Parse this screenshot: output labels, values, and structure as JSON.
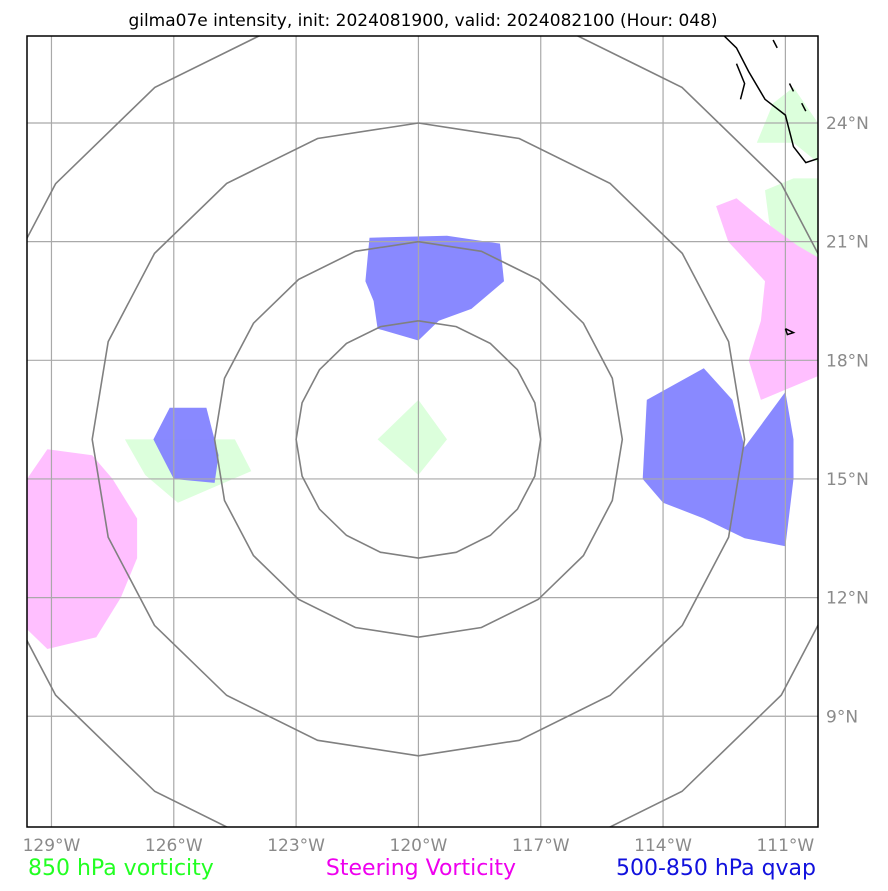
{
  "title": "gilma07e intensity, init: 2024081900, valid: 2024082100 (Hour: 048)",
  "map": {
    "lon_range": [
      -129.6,
      -110.2
    ],
    "lat_range": [
      6.2,
      26.2
    ],
    "projection": "plate-carree",
    "lon_ticks": [
      {
        "value": -129,
        "label": "129°W"
      },
      {
        "value": -126,
        "label": "126°W"
      },
      {
        "value": -123,
        "label": "123°W"
      },
      {
        "value": -120,
        "label": "120°W"
      },
      {
        "value": -117,
        "label": "117°W"
      },
      {
        "value": -114,
        "label": "114°W"
      },
      {
        "value": -111,
        "label": "111°W"
      }
    ],
    "lat_ticks": [
      {
        "value": 9,
        "label": "9°N"
      },
      {
        "value": 12,
        "label": "12°N"
      },
      {
        "value": 15,
        "label": "15°N"
      },
      {
        "value": 18,
        "label": "18°N"
      },
      {
        "value": 21,
        "label": "21°N"
      },
      {
        "value": 24,
        "label": "24°N"
      }
    ],
    "storm_center": {
      "lon": -120,
      "lat": 16
    },
    "range_ring_radii_deg": [
      3,
      5,
      8,
      11
    ],
    "colors": {
      "grid": "#a9a9a9",
      "rings": "#808080",
      "coastline": "#000000",
      "vort850": "#dcffdc",
      "steering": "#ffbfff",
      "qvap": "#7f7fff"
    }
  },
  "layers": {
    "vort850": [
      [
        [
          -125.9,
          16.0
        ],
        [
          -124.5,
          16.0
        ],
        [
          -124.1,
          15.2
        ],
        [
          -125.0,
          14.8
        ],
        [
          -125.9,
          14.4
        ],
        [
          -126.7,
          15.1
        ],
        [
          -127.2,
          16.0
        ]
      ],
      [
        [
          -120.0,
          17.0
        ],
        [
          -119.3,
          16.0
        ],
        [
          -120.0,
          15.1
        ],
        [
          -121.0,
          16.0
        ]
      ],
      [
        [
          -111.2,
          20.9
        ],
        [
          -110.2,
          20.0
        ],
        [
          -110.2,
          24.0
        ],
        [
          -110.8,
          24.9
        ],
        [
          -111.3,
          24.5
        ],
        [
          -111.7,
          23.5
        ],
        [
          -110.8,
          23.5
        ],
        [
          -110.2,
          23.0
        ],
        [
          -110.2,
          22.6
        ],
        [
          -110.8,
          22.6
        ],
        [
          -111.5,
          22.3
        ],
        [
          -111.4,
          21.5
        ]
      ]
    ],
    "steering": [
      [
        [
          -129.6,
          15.0
        ],
        [
          -129.1,
          15.75
        ],
        [
          -128.0,
          15.6
        ],
        [
          -127.5,
          15.0
        ],
        [
          -126.9,
          14.0
        ],
        [
          -126.9,
          13.0
        ],
        [
          -127.3,
          12.0
        ],
        [
          -127.9,
          11.0
        ],
        [
          -129.1,
          10.7
        ],
        [
          -129.6,
          11.2
        ]
      ],
      [
        [
          -111.6,
          17.0
        ],
        [
          -110.2,
          17.6
        ],
        [
          -110.2,
          20.6
        ],
        [
          -110.7,
          20.9
        ],
        [
          -111.5,
          21.5
        ],
        [
          -112.2,
          22.1
        ],
        [
          -112.7,
          21.9
        ],
        [
          -112.4,
          21.0
        ],
        [
          -111.5,
          20.0
        ],
        [
          -111.6,
          19.0
        ],
        [
          -111.9,
          18.0
        ]
      ]
    ],
    "qvap": [
      [
        [
          -126.0,
          15.0
        ],
        [
          -125.0,
          14.9
        ],
        [
          -124.9,
          15.6
        ],
        [
          -125.2,
          16.8
        ],
        [
          -126.1,
          16.8
        ],
        [
          -126.5,
          16.0
        ]
      ],
      [
        [
          -121.2,
          21.1
        ],
        [
          -119.3,
          21.15
        ],
        [
          -118.0,
          20.95
        ],
        [
          -117.9,
          20.0
        ],
        [
          -118.7,
          19.3
        ],
        [
          -119.5,
          19.0
        ],
        [
          -120.0,
          18.5
        ],
        [
          -121.0,
          18.8
        ],
        [
          -121.1,
          19.5
        ],
        [
          -121.3,
          20.0
        ]
      ],
      [
        [
          -114.4,
          17.0
        ],
        [
          -113.0,
          17.8
        ],
        [
          -112.3,
          17.0
        ],
        [
          -112.0,
          15.8
        ],
        [
          -111.0,
          17.2
        ],
        [
          -110.8,
          16.0
        ],
        [
          -110.8,
          15.0
        ],
        [
          -111.0,
          13.3
        ],
        [
          -112.0,
          13.5
        ],
        [
          -113.0,
          14.0
        ],
        [
          -114.0,
          14.4
        ],
        [
          -114.5,
          15.0
        ]
      ]
    ],
    "coastline": [
      [
        [
          -112.5,
          26.2
        ],
        [
          -112.2,
          25.9
        ],
        [
          -111.9,
          25.3
        ],
        [
          -111.5,
          24.6
        ],
        [
          -111.0,
          24.2
        ],
        [
          -110.8,
          23.4
        ],
        [
          -110.5,
          23.0
        ],
        [
          -110.2,
          23.1
        ]
      ],
      [
        [
          -112.2,
          25.5
        ],
        [
          -112.0,
          25.0
        ],
        [
          -112.1,
          24.6
        ]
      ],
      [
        [
          -111.3,
          26.1
        ],
        [
          -111.2,
          25.9
        ]
      ],
      [
        [
          -110.9,
          25.0
        ],
        [
          -110.8,
          24.8
        ]
      ],
      [
        [
          -110.6,
          24.5
        ],
        [
          -110.5,
          24.3
        ]
      ],
      [
        [
          -111.0,
          18.8
        ],
        [
          -110.8,
          18.7
        ],
        [
          -110.95,
          18.65
        ],
        [
          -111.0,
          18.8
        ]
      ]
    ]
  },
  "legend": [
    {
      "label": "850 hPa vorticity",
      "color": "#22ff22"
    },
    {
      "label": "Steering Vorticity",
      "color": "#ee00ee"
    },
    {
      "label": "500-850 hPa qvap",
      "color": "#1111dd"
    }
  ]
}
